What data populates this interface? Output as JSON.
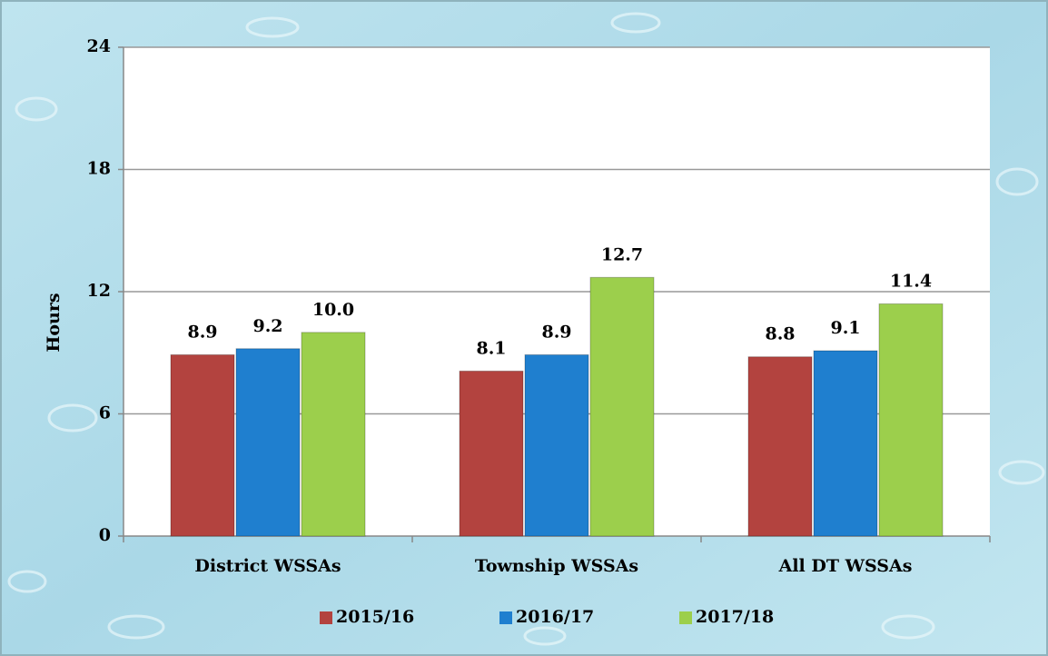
{
  "chart_data": {
    "type": "bar",
    "y_label": "Hours",
    "categories": [
      "District WSSAs",
      "Township WSSAs",
      "All DT WSSAs"
    ],
    "series": [
      {
        "name": "2015/16",
        "color": "#b3433f",
        "values": [
          8.9,
          8.1,
          8.8
        ],
        "value_labels": [
          "8.9",
          "8.1",
          "8.8"
        ]
      },
      {
        "name": "2016/17",
        "color": "#1f7fcf",
        "values": [
          9.2,
          8.9,
          9.1
        ],
        "value_labels": [
          "9.2",
          "8.9",
          "9.1"
        ]
      },
      {
        "name": "2017/18",
        "color": "#9ccf4c",
        "values": [
          10.0,
          12.7,
          11.4
        ],
        "value_labels": [
          "10.0",
          "12.7",
          "11.4"
        ]
      }
    ],
    "ylim": [
      0,
      24
    ],
    "yticks": [
      0,
      6,
      12,
      18,
      24
    ],
    "grid": true,
    "legend": "bottom"
  }
}
